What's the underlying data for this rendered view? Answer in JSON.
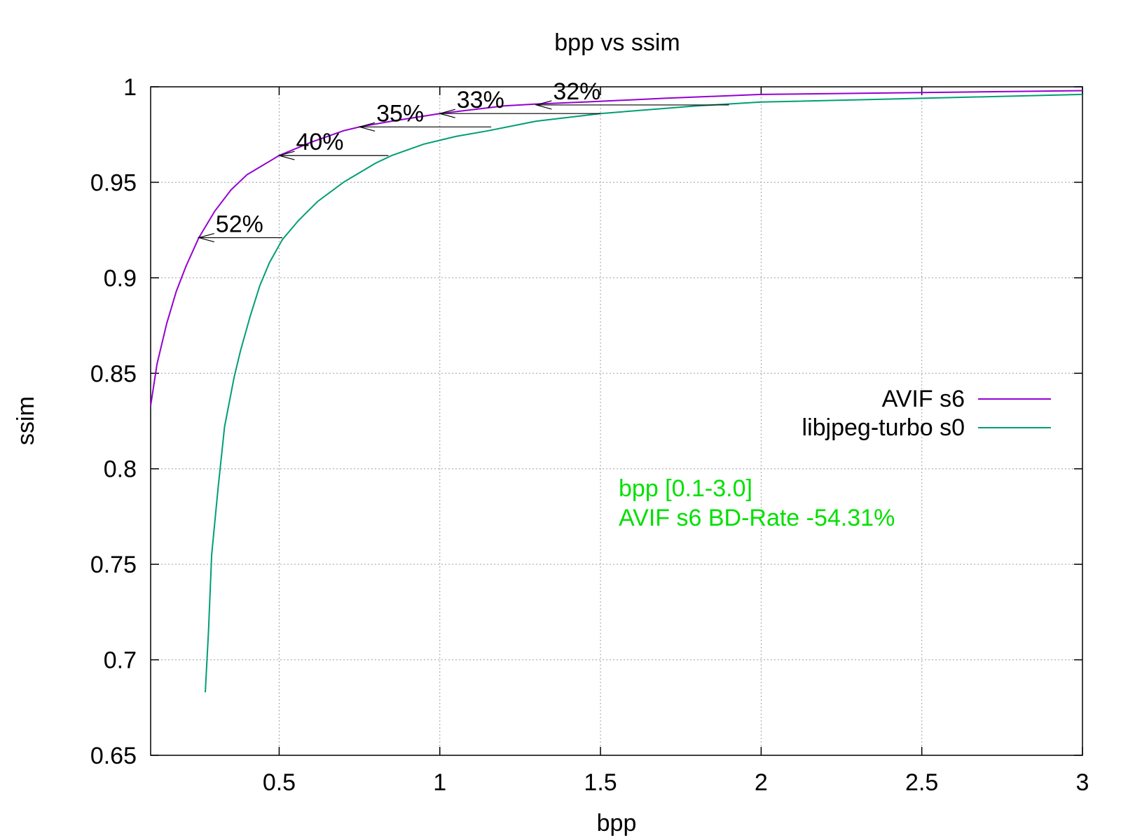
{
  "chart_data": {
    "type": "line",
    "title": "bpp vs ssim",
    "xlabel": "bpp",
    "ylabel": "ssim",
    "xlim": [
      0.1,
      3.0
    ],
    "ylim": [
      0.65,
      1.0
    ],
    "grid": true,
    "legend_position": "right",
    "x_ticks": [
      0.5,
      1,
      1.5,
      2,
      2.5,
      3
    ],
    "x_tick_labels": [
      "0.5",
      "1",
      "1.5",
      "2",
      "2.5",
      "3"
    ],
    "y_ticks": [
      0.65,
      0.7,
      0.75,
      0.8,
      0.85,
      0.9,
      0.95,
      1.0
    ],
    "y_tick_labels": [
      "0.65",
      "0.7",
      "0.75",
      "0.8",
      "0.85",
      "0.9",
      "0.95",
      "1"
    ],
    "series": [
      {
        "name": "AVIF s6",
        "color": "#9400d3",
        "points": [
          [
            0.1,
            0.833
          ],
          [
            0.12,
            0.855
          ],
          [
            0.15,
            0.876
          ],
          [
            0.18,
            0.893
          ],
          [
            0.21,
            0.906
          ],
          [
            0.25,
            0.921
          ],
          [
            0.3,
            0.935
          ],
          [
            0.35,
            0.946
          ],
          [
            0.4,
            0.954
          ],
          [
            0.45,
            0.959
          ],
          [
            0.5,
            0.964
          ],
          [
            0.6,
            0.971
          ],
          [
            0.7,
            0.977
          ],
          [
            0.75,
            0.979
          ],
          [
            0.85,
            0.982
          ],
          [
            1.0,
            0.986
          ],
          [
            1.1,
            0.988
          ],
          [
            1.2,
            0.99
          ],
          [
            1.3,
            0.991
          ],
          [
            1.45,
            0.992
          ],
          [
            1.7,
            0.994
          ],
          [
            2.0,
            0.996
          ],
          [
            2.5,
            0.997
          ],
          [
            3.0,
            0.998
          ]
        ]
      },
      {
        "name": "libjpeg-turbo s0",
        "color": "#009e73",
        "points": [
          [
            0.27,
            0.683
          ],
          [
            0.28,
            0.715
          ],
          [
            0.29,
            0.755
          ],
          [
            0.31,
            0.79
          ],
          [
            0.33,
            0.822
          ],
          [
            0.36,
            0.848
          ],
          [
            0.38,
            0.862
          ],
          [
            0.41,
            0.88
          ],
          [
            0.44,
            0.896
          ],
          [
            0.47,
            0.908
          ],
          [
            0.51,
            0.92
          ],
          [
            0.56,
            0.93
          ],
          [
            0.62,
            0.94
          ],
          [
            0.7,
            0.95
          ],
          [
            0.8,
            0.96
          ],
          [
            0.85,
            0.964
          ],
          [
            0.95,
            0.97
          ],
          [
            1.05,
            0.974
          ],
          [
            1.15,
            0.977
          ],
          [
            1.3,
            0.982
          ],
          [
            1.5,
            0.986
          ],
          [
            1.8,
            0.99
          ],
          [
            2.0,
            0.992
          ],
          [
            2.5,
            0.994
          ],
          [
            3.0,
            0.996
          ]
        ]
      }
    ],
    "annotations": [
      {
        "label": "52%",
        "ssim": 0.921,
        "x_from": 0.51,
        "x_to": 0.25
      },
      {
        "label": "40%",
        "ssim": 0.964,
        "x_from": 0.84,
        "x_to": 0.5
      },
      {
        "label": "35%",
        "ssim": 0.979,
        "x_from": 1.16,
        "x_to": 0.75
      },
      {
        "label": "33%",
        "ssim": 0.986,
        "x_from": 1.5,
        "x_to": 1.0
      },
      {
        "label": "32%",
        "ssim": 0.9905,
        "x_from": 1.9,
        "x_to": 1.3
      }
    ],
    "note_color": "#00e000",
    "note_lines": [
      "bpp [0.1-3.0]",
      "AVIF s6 BD-Rate -54.31%"
    ]
  }
}
